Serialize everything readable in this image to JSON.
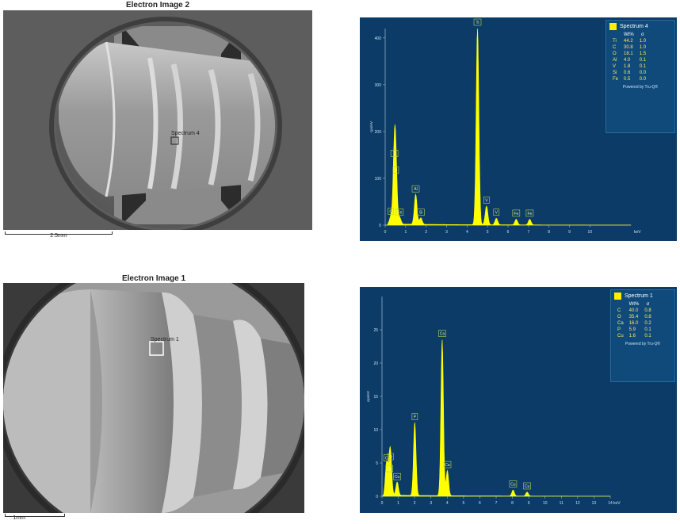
{
  "sem_top": {
    "title": "Electron Image 2",
    "spectrum_label": "Spectrum 4",
    "scale_label": "2.5mm"
  },
  "sem_bottom": {
    "title": "Electron Image 1",
    "spectrum_label": "Spectrum 1",
    "scale_label": "1mm"
  },
  "colors": {
    "plot_bg": "#0b3b66",
    "spectrum": "#ffff00",
    "label_box": "#b8d84a"
  },
  "chart_data": [
    {
      "type": "line",
      "series": [
        {
          "name": "Spectrum 4"
        }
      ],
      "xlabel": "keV",
      "ylabel": "cps/eV",
      "xlim": [
        0,
        12
      ],
      "ylim": [
        0,
        420
      ],
      "xticks": [
        "0",
        "1",
        "2",
        "3",
        "4",
        "5",
        "6",
        "7",
        "8",
        "9",
        "10"
      ],
      "yticks": [
        "0",
        "100",
        "200",
        "300",
        "400"
      ],
      "peaks": [
        {
          "label": "C",
          "x": 0.28,
          "y": 16
        },
        {
          "label": "Ti",
          "x": 0.45,
          "y": 140
        },
        {
          "label": "O",
          "x": 0.52,
          "y": 104
        },
        {
          "label": "Fe",
          "x": 0.71,
          "y": 14
        },
        {
          "label": "Al",
          "x": 1.49,
          "y": 64
        },
        {
          "label": "Si",
          "x": 1.74,
          "y": 14
        },
        {
          "label": "Ti",
          "x": 4.51,
          "y": 420
        },
        {
          "label": "V",
          "x": 4.95,
          "y": 40
        },
        {
          "label": "V",
          "x": 5.43,
          "y": 14
        },
        {
          "label": "Fe",
          "x": 6.4,
          "y": 12
        },
        {
          "label": "Fe",
          "x": 7.06,
          "y": 12
        }
      ],
      "legend": {
        "title": "Spectrum 4",
        "columns": [
          "Wt%",
          "σ"
        ],
        "rows": [
          [
            "Ti",
            "44.2",
            "1.0"
          ],
          [
            "C",
            "30.8",
            "1.0"
          ],
          [
            "O",
            "18.1",
            "1.5"
          ],
          [
            "Al",
            "4.0",
            "0.1"
          ],
          [
            "V",
            "1.8",
            "0.1"
          ],
          [
            "Si",
            "0.6",
            "0.0"
          ],
          [
            "Fe",
            "0.5",
            "0.0"
          ]
        ],
        "footer": "Powered by Tru-Q®",
        "position": "top-right"
      }
    },
    {
      "type": "line",
      "series": [
        {
          "name": "Spectrum 1"
        }
      ],
      "xlabel": "keV",
      "ylabel": "cps/eV",
      "xlim": [
        0,
        14
      ],
      "ylim": [
        0,
        30
      ],
      "xticks": [
        "0",
        "1",
        "2",
        "3",
        "4",
        "5",
        "6",
        "7",
        "8",
        "9",
        "10",
        "11",
        "12",
        "13",
        "14"
      ],
      "yticks": [
        "0",
        "5",
        "10",
        "15",
        "20",
        "25"
      ],
      "peaks": [
        {
          "label": "C",
          "x": 0.28,
          "y": 4.8
        },
        {
          "label": "Cu",
          "x": 0.45,
          "y": 3.2
        },
        {
          "label": "O",
          "x": 0.53,
          "y": 5.0
        },
        {
          "label": "Cu",
          "x": 0.93,
          "y": 2.0
        },
        {
          "label": "P",
          "x": 2.01,
          "y": 11.0
        },
        {
          "label": "Ca",
          "x": 3.69,
          "y": 23.5
        },
        {
          "label": "Ca",
          "x": 4.01,
          "y": 3.8
        },
        {
          "label": "Cu",
          "x": 8.04,
          "y": 0.9
        },
        {
          "label": "Cu",
          "x": 8.9,
          "y": 0.6
        }
      ],
      "legend": {
        "title": "Spectrum 1",
        "columns": [
          "Wt%",
          "σ"
        ],
        "rows": [
          [
            "C",
            "40.0",
            "0.8"
          ],
          [
            "O",
            "35.4",
            "0.8"
          ],
          [
            "Ca",
            "16.0",
            "0.2"
          ],
          [
            "P",
            "5.9",
            "0.1"
          ],
          [
            "Cu",
            "1.6",
            "0.1"
          ]
        ],
        "footer": "Powered by Tru-Q®",
        "position": "top-right"
      }
    }
  ]
}
